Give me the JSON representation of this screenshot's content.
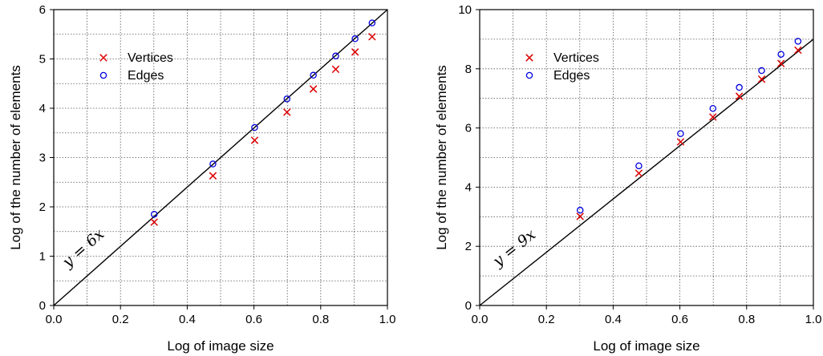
{
  "chart_data": [
    {
      "type": "scatter",
      "xlabel": "Log of image size",
      "ylabel": "Log of the number of elements",
      "xlim": [
        0.0,
        1.0
      ],
      "ylim": [
        0,
        6
      ],
      "x_ticks": [
        "0.0",
        "0.2",
        "0.4",
        "0.6",
        "0.8",
        "1.0"
      ],
      "y_ticks": [
        "0",
        "1",
        "2",
        "3",
        "4",
        "5",
        "6"
      ],
      "grid": true,
      "legend_position": "top-left",
      "reference_line": {
        "label": "y = 6x",
        "slope": 6
      },
      "x": [
        0.301,
        0.477,
        0.602,
        0.699,
        0.778,
        0.845,
        0.903,
        0.954
      ],
      "series": [
        {
          "name": "Vertices",
          "marker": "x",
          "color": "#dd0000",
          "values": [
            1.69,
            2.63,
            3.35,
            3.92,
            4.39,
            4.79,
            5.14,
            5.45
          ]
        },
        {
          "name": "Edges",
          "marker": "circle",
          "color": "#0000dd",
          "values": [
            1.85,
            2.87,
            3.61,
            4.19,
            4.67,
            5.06,
            5.41,
            5.73
          ]
        }
      ]
    },
    {
      "type": "scatter",
      "xlabel": "Log of image size",
      "ylabel": "Log of the number of elements",
      "xlim": [
        0.0,
        1.0
      ],
      "ylim": [
        0,
        10
      ],
      "x_ticks": [
        "0.0",
        "0.2",
        "0.4",
        "0.6",
        "0.8",
        "1.0"
      ],
      "y_ticks": [
        "0",
        "2",
        "4",
        "6",
        "8",
        "10"
      ],
      "grid": true,
      "legend_position": "top-left",
      "reference_line": {
        "label": "y = 9x",
        "slope": 9
      },
      "x": [
        0.301,
        0.477,
        0.602,
        0.699,
        0.778,
        0.845,
        0.903,
        0.954
      ],
      "series": [
        {
          "name": "Vertices",
          "marker": "x",
          "color": "#dd0000",
          "values": [
            3.01,
            4.47,
            5.53,
            6.37,
            7.07,
            7.65,
            8.18,
            8.63
          ]
        },
        {
          "name": "Edges",
          "marker": "circle",
          "color": "#0000dd",
          "values": [
            3.22,
            4.72,
            5.81,
            6.66,
            7.37,
            7.94,
            8.49,
            8.93
          ]
        }
      ]
    }
  ]
}
